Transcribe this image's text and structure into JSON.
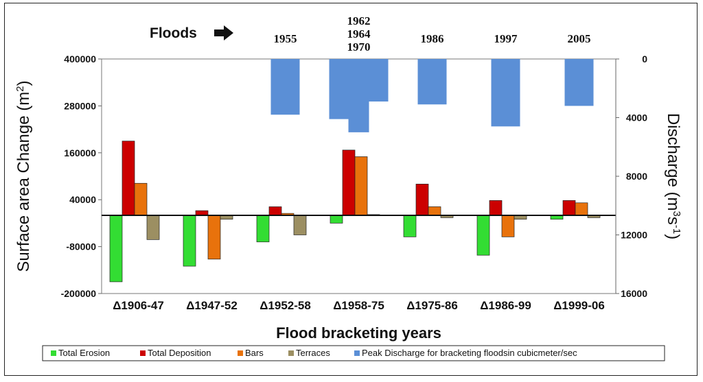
{
  "chart_data": {
    "type": "bar",
    "categories": [
      "Δ1906-47",
      "Δ1947-52",
      "Δ1952-58",
      "Δ1958-75",
      "Δ1975-86",
      "Δ1986-99",
      "Δ1999-06"
    ],
    "series": [
      {
        "name": "Total Erosion",
        "color": "#33dd33",
        "values": [
          -170000,
          -130000,
          -68000,
          -20000,
          -55000,
          -102000,
          -10000
        ]
      },
      {
        "name": "Total Deposition",
        "color": "#cc0000",
        "values": [
          190000,
          12000,
          22000,
          167000,
          80000,
          38000,
          38000
        ]
      },
      {
        "name": "Bars",
        "color": "#e8720c",
        "values": [
          82000,
          -112000,
          5000,
          150000,
          22000,
          -55000,
          32000
        ]
      },
      {
        "name": "Terraces",
        "color": "#9c8f62",
        "values": [
          -62000,
          -10000,
          -50000,
          2000,
          -6000,
          -10000,
          -6000
        ]
      }
    ],
    "peak_discharge": {
      "name": "Peak Discharge for bracketing floodsin cubicmeter/sec",
      "color": "#5b8fd6",
      "bars": [
        {
          "category_index": 2,
          "value": 3800
        },
        {
          "category_index": 3,
          "value": 4100
        },
        {
          "category_index": 3,
          "value": 5000
        },
        {
          "category_index": 3,
          "value": 2900
        },
        {
          "category_index": 4,
          "value": 3100
        },
        {
          "category_index": 5,
          "value": 4600
        },
        {
          "category_index": 6,
          "value": 3200
        }
      ]
    },
    "floods": {
      "label": "Floods",
      "years": [
        {
          "category_index": 2,
          "lines": [
            "1955"
          ]
        },
        {
          "category_index": 3,
          "lines": [
            "1962",
            "1964",
            "1970"
          ]
        },
        {
          "category_index": 4,
          "lines": [
            "1986"
          ]
        },
        {
          "category_index": 5,
          "lines": [
            "1997"
          ]
        },
        {
          "category_index": 6,
          "lines": [
            "2005"
          ]
        }
      ]
    },
    "ylabel_left": "Surface area Change (m2)",
    "ylabel_right": "Discharge (m3s-1)",
    "xlabel": "Flood bracketing years",
    "ylim_left": [
      -200000,
      400000
    ],
    "yticks_left": [
      "400000",
      "280000",
      "160000",
      "40000",
      "-80000",
      "-200000"
    ],
    "ylim_right": [
      0,
      16000
    ],
    "yticks_right": [
      "0",
      "4000",
      "8000",
      "12000",
      "16000"
    ],
    "legend_position": "bottom"
  }
}
